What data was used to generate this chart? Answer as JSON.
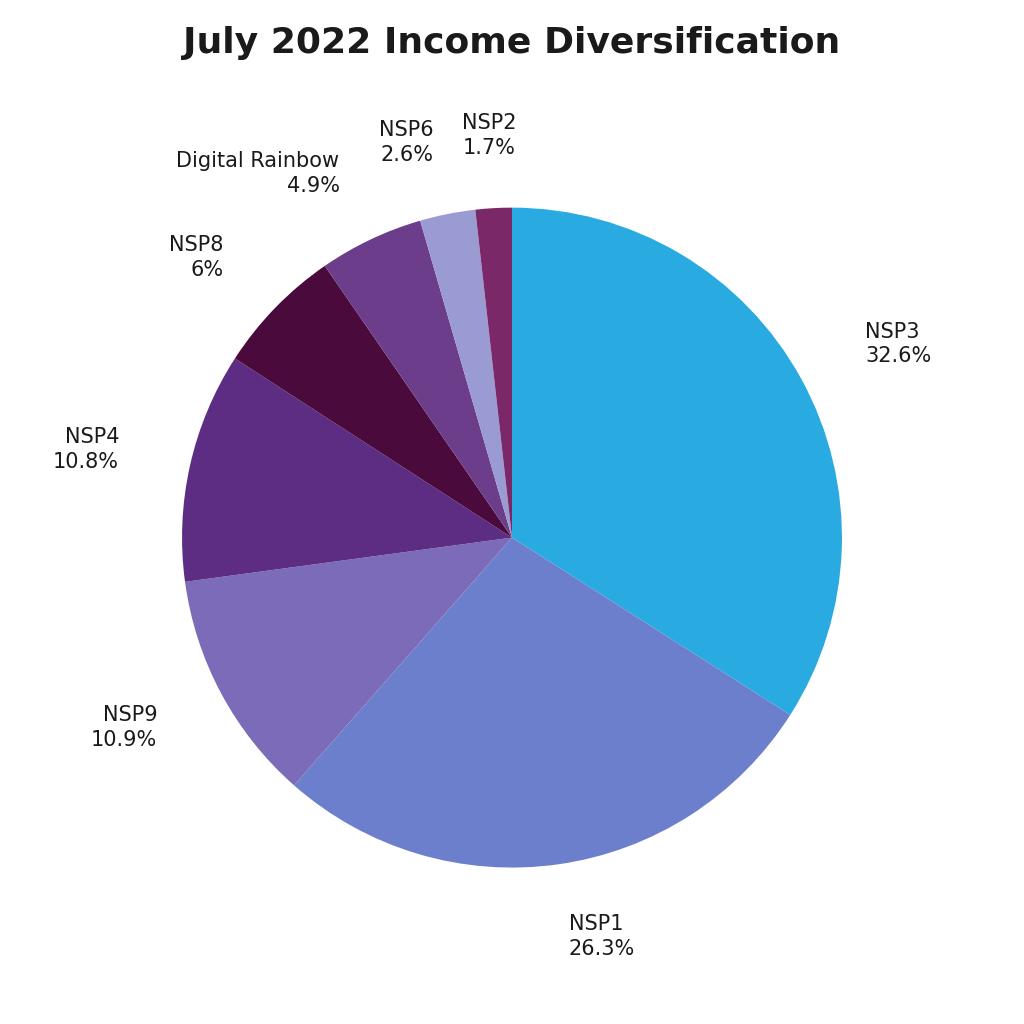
{
  "title": "July 2022 Income Diversification",
  "slices": [
    {
      "label": "NSP3",
      "pct": 32.6,
      "color": "#29ABE2"
    },
    {
      "label": "NSP1",
      "pct": 26.3,
      "color": "#6B7FCC"
    },
    {
      "label": "NSP9",
      "pct": 10.9,
      "color": "#7B6BB8"
    },
    {
      "label": "NSP4",
      "pct": 10.8,
      "color": "#5C2D82"
    },
    {
      "label": "NSP8",
      "pct": 6.0,
      "color": "#4A0A3C"
    },
    {
      "label": "Digital Rainbow",
      "pct": 4.9,
      "color": "#6B3D8A"
    },
    {
      "label": "NSP6",
      "pct": 2.6,
      "color": "#9B9BD4"
    },
    {
      "label": "NSP2",
      "pct": 1.7,
      "color": "#7A2868"
    }
  ],
  "background_color": "#FFFFFF",
  "text_color": "#1a1a1a",
  "title_fontsize": 26,
  "label_fontsize": 15
}
